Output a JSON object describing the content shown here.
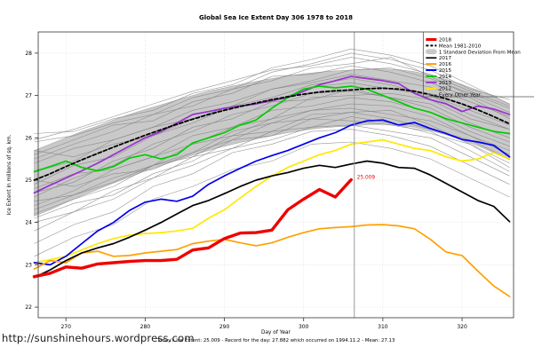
{
  "page": {
    "title": "Global Sea Ice Extent Day 306 1978 to 2018",
    "x_axis_label": "Day of Year",
    "y_axis_label": "Ice Extent in millions of sq. km.",
    "footer_url": "http://sunshinehours.wordpress.com",
    "caption": "Today's Ice Extent: 25.009  - Record for the day: 27.882 which occurred on 1994.11.2  - Mean: 27.13"
  },
  "colors": {
    "axis": "#333333",
    "grid": "#dcdcdc",
    "marker_line": "#9a9a9a",
    "legend_border": "#555555",
    "background": "#ffffff"
  },
  "chart_data": {
    "type": "line",
    "title": "Global Sea Ice Extent Day 306 1978 to 2018",
    "xlabel": "Day of Year",
    "ylabel": "Ice Extent in millions of sq. km.",
    "xlim": [
      266.5,
      326.5
    ],
    "ylim": [
      21.75,
      28.5
    ],
    "x_ticks": [
      270,
      280,
      290,
      300,
      310,
      320
    ],
    "y_ticks": [
      22,
      23,
      24,
      25,
      26,
      27,
      28
    ],
    "grid": true,
    "legend_position": "top-right",
    "days": [
      266,
      268,
      270,
      272,
      274,
      276,
      278,
      280,
      282,
      284,
      286,
      288,
      290,
      292,
      294,
      296,
      298,
      300,
      302,
      304,
      306,
      308,
      310,
      312,
      314,
      316,
      318,
      320,
      322,
      324,
      326
    ],
    "series": [
      {
        "name": "2018",
        "color": "#ee0000",
        "width": 3.4,
        "dash": null,
        "values": [
          22.72,
          22.8,
          22.95,
          22.92,
          23.02,
          23.05,
          23.08,
          23.1,
          23.1,
          23.13,
          23.35,
          23.4,
          23.62,
          23.75,
          23.76,
          23.82,
          24.3,
          24.55,
          24.78,
          24.6,
          25.009
        ]
      },
      {
        "name": "Mean 1981-2010",
        "color": "#000000",
        "width": 1.8,
        "dash": "4,2.5",
        "values": [
          25.0,
          25.15,
          25.32,
          25.48,
          25.63,
          25.78,
          25.92,
          26.06,
          26.19,
          26.32,
          26.44,
          26.55,
          26.65,
          26.74,
          26.82,
          26.9,
          26.97,
          27.03,
          27.08,
          27.11,
          27.13,
          27.16,
          27.17,
          27.15,
          27.1,
          27.02,
          26.92,
          26.8,
          26.66,
          26.5,
          26.33
        ]
      },
      {
        "name": "2017",
        "color": "#000000",
        "width": 1.7,
        "dash": null,
        "values": [
          22.7,
          22.88,
          23.1,
          23.28,
          23.4,
          23.5,
          23.65,
          23.82,
          24.0,
          24.2,
          24.4,
          24.52,
          24.68,
          24.85,
          25.0,
          25.1,
          25.18,
          25.28,
          25.35,
          25.3,
          25.38,
          25.45,
          25.4,
          25.3,
          25.28,
          25.12,
          24.92,
          24.72,
          24.52,
          24.38,
          24.02
        ]
      },
      {
        "name": "2016",
        "color": "#ffa000",
        "width": 1.7,
        "dash": null,
        "values": [
          22.9,
          23.1,
          23.05,
          23.28,
          23.32,
          23.2,
          23.22,
          23.28,
          23.32,
          23.36,
          23.5,
          23.56,
          23.6,
          23.52,
          23.45,
          23.52,
          23.65,
          23.76,
          23.85,
          23.88,
          23.9,
          23.94,
          23.95,
          23.92,
          23.85,
          23.6,
          23.3,
          23.22,
          22.85,
          22.5,
          22.25
        ]
      },
      {
        "name": "2015",
        "color": "#0000ee",
        "width": 1.7,
        "dash": null,
        "values": [
          23.05,
          23.0,
          23.2,
          23.5,
          23.8,
          24.0,
          24.28,
          24.48,
          24.55,
          24.5,
          24.62,
          24.9,
          25.1,
          25.28,
          25.45,
          25.58,
          25.7,
          25.85,
          26.0,
          26.12,
          26.3,
          26.4,
          26.42,
          26.3,
          26.36,
          26.22,
          26.1,
          25.96,
          25.9,
          25.82,
          25.55
        ]
      },
      {
        "name": "2014",
        "color": "#00cc00",
        "width": 1.7,
        "dash": null,
        "values": [
          25.2,
          25.32,
          25.45,
          25.3,
          25.22,
          25.32,
          25.52,
          25.6,
          25.5,
          25.6,
          25.88,
          26.0,
          26.12,
          26.3,
          26.42,
          26.7,
          26.95,
          27.15,
          27.22,
          27.18,
          27.22,
          27.15,
          27.0,
          26.85,
          26.7,
          26.6,
          26.45,
          26.35,
          26.25,
          26.15,
          26.1
        ]
      },
      {
        "name": "2013",
        "color": "#9932cc",
        "width": 1.7,
        "dash": null,
        "values": [
          24.7,
          24.88,
          25.05,
          25.22,
          25.4,
          25.6,
          25.8,
          26.0,
          26.15,
          26.35,
          26.55,
          26.62,
          26.7,
          26.75,
          26.8,
          26.88,
          26.95,
          27.1,
          27.25,
          27.35,
          27.45,
          27.4,
          27.35,
          27.28,
          27.05,
          26.9,
          26.8,
          26.62,
          26.75,
          26.68,
          26.55
        ]
      },
      {
        "name": "2012",
        "color": "#ffe800",
        "width": 1.7,
        "dash": null,
        "values": [
          23.05,
          23.12,
          23.2,
          23.35,
          23.5,
          23.62,
          23.7,
          23.74,
          23.76,
          23.8,
          23.86,
          24.1,
          24.3,
          24.58,
          24.85,
          25.1,
          25.3,
          25.45,
          25.6,
          25.7,
          25.85,
          25.9,
          25.95,
          25.85,
          25.75,
          25.7,
          25.55,
          25.45,
          25.5,
          25.65,
          25.5
        ]
      }
    ],
    "band": {
      "name": "1 Standard Deviation From Mean",
      "fill": "#c9c9c9",
      "edge": "#9e9e9e",
      "upper": [
        25.7,
        25.85,
        26.0,
        26.15,
        26.28,
        26.42,
        26.55,
        26.67,
        26.78,
        26.89,
        27.0,
        27.1,
        27.18,
        27.26,
        27.33,
        27.4,
        27.46,
        27.51,
        27.55,
        27.58,
        27.6,
        27.62,
        27.63,
        27.61,
        27.56,
        27.48,
        27.38,
        27.26,
        27.12,
        26.97,
        26.8
      ],
      "lower": [
        24.15,
        24.3,
        24.47,
        24.63,
        24.78,
        24.93,
        25.07,
        25.21,
        25.34,
        25.47,
        25.59,
        25.7,
        25.8,
        25.89,
        25.97,
        26.05,
        26.12,
        26.18,
        26.23,
        26.26,
        26.28,
        26.31,
        26.32,
        26.3,
        26.25,
        26.17,
        26.07,
        25.95,
        25.81,
        25.65,
        25.48
      ]
    },
    "every_other_year": {
      "name": "Every Other Year",
      "color": "#828282",
      "width": 0.6,
      "days": [
        266,
        271,
        276,
        281,
        286,
        291,
        296,
        301,
        306,
        311,
        316,
        321,
        326
      ],
      "lines": [
        [
          25.9,
          26.05,
          26.35,
          26.55,
          26.95,
          27.15,
          27.55,
          27.75,
          28.0,
          27.85,
          27.6,
          27.15,
          26.9
        ],
        [
          25.5,
          25.85,
          26.15,
          26.55,
          26.75,
          27.15,
          27.35,
          27.65,
          27.75,
          27.9,
          27.45,
          27.0,
          26.6
        ],
        [
          25.2,
          25.45,
          25.95,
          26.25,
          26.65,
          26.85,
          27.15,
          27.3,
          27.5,
          27.35,
          27.2,
          26.85,
          26.5
        ],
        [
          24.9,
          25.35,
          25.55,
          26.05,
          26.35,
          26.75,
          26.85,
          27.2,
          27.3,
          27.15,
          27.0,
          26.65,
          26.3
        ],
        [
          24.6,
          25.05,
          25.35,
          25.85,
          26.15,
          26.55,
          26.75,
          27.05,
          27.1,
          26.95,
          26.8,
          26.35,
          26.0
        ],
        [
          24.4,
          24.75,
          25.25,
          25.55,
          26.05,
          26.25,
          26.65,
          26.75,
          26.95,
          26.85,
          26.6,
          26.15,
          25.8
        ],
        [
          24.2,
          24.55,
          24.85,
          25.35,
          25.65,
          26.15,
          26.35,
          26.65,
          26.7,
          26.55,
          26.4,
          26.05,
          25.6
        ],
        [
          24.0,
          24.25,
          24.75,
          25.05,
          25.55,
          25.75,
          26.15,
          26.25,
          26.5,
          26.35,
          26.1,
          25.85,
          25.3
        ],
        [
          25.7,
          25.55,
          25.85,
          26.05,
          26.45,
          26.75,
          27.15,
          27.35,
          27.6,
          27.65,
          27.4,
          27.05,
          26.7
        ],
        [
          24.8,
          25.15,
          25.25,
          25.55,
          25.85,
          26.25,
          26.45,
          26.95,
          27.0,
          27.05,
          26.9,
          26.45,
          26.2
        ],
        [
          23.8,
          24.25,
          24.55,
          25.05,
          25.35,
          25.75,
          25.95,
          26.25,
          26.3,
          26.15,
          26.0,
          25.55,
          25.1
        ],
        [
          25.4,
          25.75,
          25.95,
          26.25,
          26.45,
          26.75,
          26.95,
          27.25,
          27.4,
          27.25,
          27.0,
          26.55,
          26.2
        ],
        [
          24.5,
          24.65,
          25.05,
          25.35,
          25.85,
          26.05,
          26.45,
          26.65,
          26.8,
          26.75,
          26.5,
          26.05,
          25.7
        ],
        [
          23.5,
          23.95,
          24.25,
          24.85,
          25.15,
          25.65,
          25.85,
          26.15,
          26.2,
          26.05,
          25.8,
          25.35,
          24.9
        ],
        [
          23.2,
          23.65,
          23.95,
          24.55,
          24.85,
          25.25,
          25.45,
          25.85,
          25.9,
          25.75,
          25.5,
          25.05,
          24.6
        ],
        [
          26.1,
          26.15,
          26.45,
          26.65,
          27.05,
          27.25,
          27.65,
          27.85,
          28.1,
          27.95,
          27.7,
          27.25,
          26.8
        ],
        [
          25.0,
          24.85,
          25.15,
          25.25,
          25.65,
          25.95,
          26.35,
          26.45,
          26.6,
          26.45,
          26.2,
          25.95,
          25.5
        ],
        [
          24.3,
          24.65,
          24.95,
          25.35,
          25.55,
          26.05,
          26.15,
          26.55,
          26.6,
          26.65,
          26.3,
          25.85,
          25.4
        ],
        [
          25.95,
          26.2,
          26.5,
          26.8,
          27.1,
          27.35,
          27.6,
          27.7,
          27.9,
          27.75,
          27.5,
          27.1,
          26.75
        ],
        [
          24.7,
          24.95,
          25.45,
          25.75,
          26.25,
          26.45,
          26.85,
          26.9,
          27.15,
          26.95,
          26.7,
          26.25,
          25.9
        ],
        [
          25.6,
          25.95,
          26.3,
          26.4,
          26.85,
          27.05,
          27.45,
          27.5,
          27.7,
          27.55,
          27.3,
          26.95,
          26.45
        ],
        [
          24.1,
          24.45,
          24.65,
          25.15,
          25.45,
          25.95,
          26.05,
          26.45,
          26.4,
          26.3,
          26.15,
          25.7,
          25.2
        ]
      ]
    },
    "marker": {
      "day": 306.4,
      "value": 25.009,
      "label": "25.009",
      "color": "#ee0000"
    },
    "legend_box": {
      "left_day": 315.1,
      "bottom_value": 26.97
    },
    "legend": [
      {
        "label": "2018",
        "color": "#ee0000",
        "type": "line",
        "width": 3
      },
      {
        "label": "Mean 1981-2010",
        "color": "#000000",
        "type": "dashed",
        "width": 2
      },
      {
        "label": "1 Standard Deviation From Mean",
        "color": "#c9c9c9",
        "type": "band",
        "width": 0
      },
      {
        "label": "2017",
        "color": "#000000",
        "type": "line",
        "width": 1.6
      },
      {
        "label": "2016",
        "color": "#ffa000",
        "type": "line",
        "width": 2
      },
      {
        "label": "2015",
        "color": "#0000ee",
        "type": "line",
        "width": 2
      },
      {
        "label": "2014",
        "color": "#00cc00",
        "type": "line",
        "width": 2
      },
      {
        "label": "2013",
        "color": "#9932cc",
        "type": "line",
        "width": 2
      },
      {
        "label": "2012",
        "color": "#ffe800",
        "type": "line",
        "width": 2
      },
      {
        "label": "Every Other Year",
        "color": "#828282",
        "type": "line",
        "width": 0.7
      }
    ]
  }
}
